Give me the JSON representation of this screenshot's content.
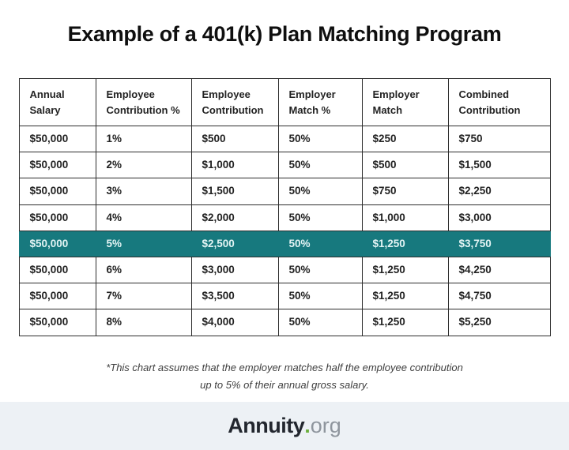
{
  "title": "Example of a 401(k) Plan Matching Program",
  "colors": {
    "accent": "#17797e",
    "highlight-text": "#e3f4f4",
    "border": "#2d2d2d",
    "text": "#232323",
    "footer-bg": "#edf1f5",
    "logo-dark": "#22262e",
    "logo-dot": "#6cb03e",
    "logo-gray": "#8e959d"
  },
  "chart_data": {
    "type": "table",
    "title": "Example of a 401(k) Plan Matching Program",
    "columns": [
      "Annual\nSalary",
      "Employee\nContribution %",
      "Employee\nContribution",
      "Employer\nMatch %",
      "Employer\nMatch",
      "Combined\nContribution"
    ],
    "rows": [
      [
        "$50,000",
        "1%",
        "$500",
        "50%",
        "$250",
        "$750"
      ],
      [
        "$50,000",
        "2%",
        "$1,000",
        "50%",
        "$500",
        "$1,500"
      ],
      [
        "$50,000",
        "3%",
        "$1,500",
        "50%",
        "$750",
        "$2,250"
      ],
      [
        "$50,000",
        "4%",
        "$2,000",
        "50%",
        "$1,000",
        "$3,000"
      ],
      [
        "$50,000",
        "5%",
        "$2,500",
        "50%",
        "$1,250",
        "$3,750"
      ],
      [
        "$50,000",
        "6%",
        "$3,000",
        "50%",
        "$1,250",
        "$4,250"
      ],
      [
        "$50,000",
        "7%",
        "$3,500",
        "50%",
        "$1,250",
        "$4,750"
      ],
      [
        "$50,000",
        "8%",
        "$4,000",
        "50%",
        "$1,250",
        "$5,250"
      ]
    ],
    "highlighted_row_index": 4,
    "footnote": "*This chart assumes that the employer matches half the employee contribution up to 5% of their annual gross salary."
  },
  "footnote": {
    "line1": "*This chart assumes that the employer matches half the employee contribution",
    "line2": "up to 5% of their annual gross salary."
  },
  "logo": {
    "brand": "Annuity",
    "dot": ".",
    "tld": "org"
  }
}
